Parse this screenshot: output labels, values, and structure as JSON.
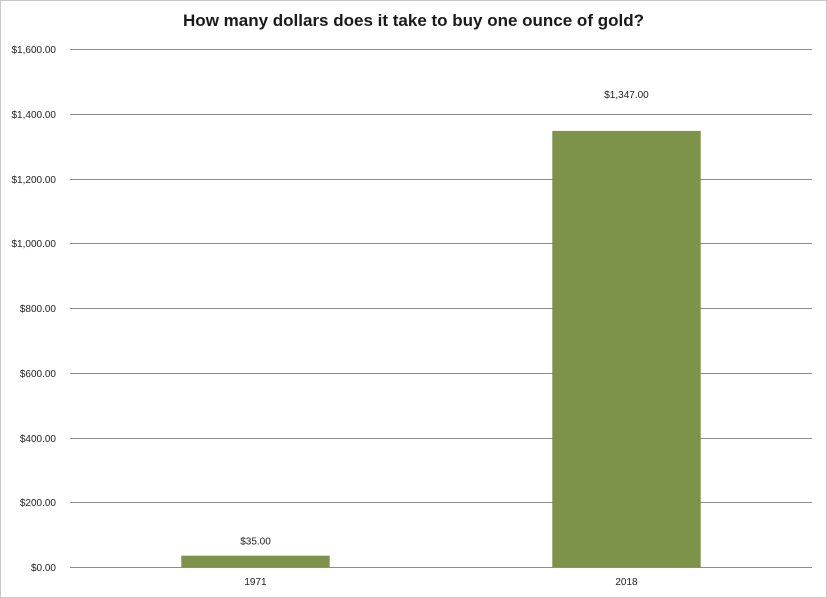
{
  "chart_data": {
    "type": "bar",
    "title": "How many dollars does it take to buy one ounce of gold?",
    "categories": [
      "1971",
      "2018"
    ],
    "values": [
      35.0,
      1347.0
    ],
    "data_labels": [
      "$35.00",
      "$1,347.00"
    ],
    "ylim": [
      0,
      1600
    ],
    "yticks": [
      0,
      200,
      400,
      600,
      800,
      1000,
      1200,
      1400,
      1600
    ],
    "ytick_labels": [
      "$0.00",
      "$200.00",
      "$400.00",
      "$600.00",
      "$800.00",
      "$1,000.00",
      "$1,200.00",
      "$1,400.00",
      "$1,600.00"
    ],
    "xlabel": "",
    "ylabel": "",
    "grid": true,
    "legend": "none",
    "bar_color": "#7d9349",
    "gridline_color": "#8c8c8c"
  }
}
